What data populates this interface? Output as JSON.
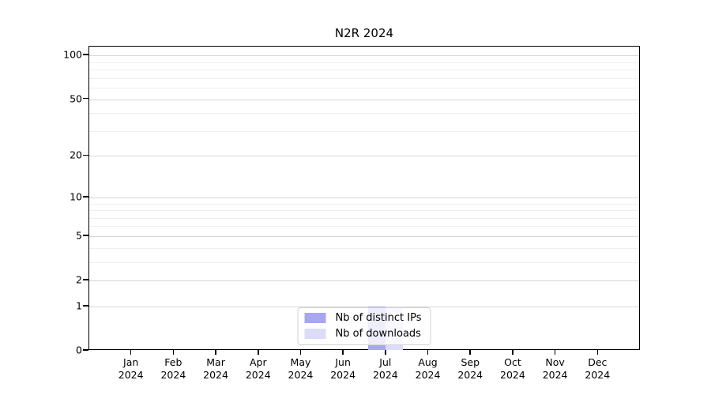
{
  "chart_data": {
    "type": "bar",
    "title": "N2R 2024",
    "categories": [
      "Jan 2024",
      "Feb 2024",
      "Mar 2024",
      "Apr 2024",
      "May 2024",
      "Jun 2024",
      "Jul 2024",
      "Aug 2024",
      "Sep 2024",
      "Oct 2024",
      "Nov 2024",
      "Dec 2024"
    ],
    "series": [
      {
        "name": "Nb of distinct IPs",
        "color": "#a6a6f1",
        "values": [
          0,
          0,
          0,
          0,
          0,
          0,
          1,
          0,
          0,
          0,
          0,
          0
        ]
      },
      {
        "name": "Nb of downloads",
        "color": "#dcdcf9",
        "values": [
          0,
          0,
          0,
          0,
          0,
          0,
          1,
          0,
          0,
          0,
          0,
          0
        ]
      }
    ],
    "xlabel": "",
    "ylabel": "",
    "yscale": "log1p",
    "ylim": [
      0,
      115
    ],
    "yticks": [
      0,
      1,
      2,
      5,
      10,
      20,
      50,
      100
    ],
    "yminorticks": [
      3,
      4,
      6,
      7,
      8,
      9,
      30,
      40,
      60,
      70,
      80,
      90
    ],
    "grid": true,
    "legend_position": "lower center",
    "colors": {
      "major_grid": "#d6d6d6",
      "minor_grid": "#efefef",
      "spine": "#000000",
      "legend_border": "#d2d2d2",
      "text": "#000000",
      "background": "#ffffff"
    }
  }
}
